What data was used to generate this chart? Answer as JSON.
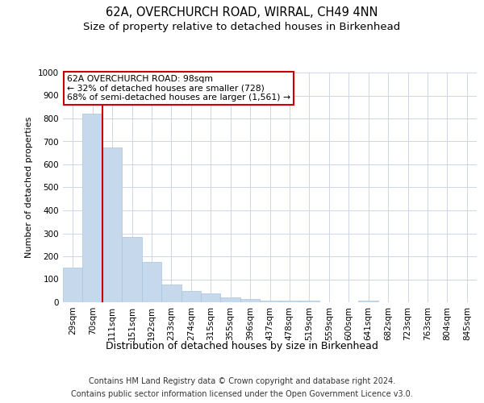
{
  "title": "62A, OVERCHURCH ROAD, WIRRAL, CH49 4NN",
  "subtitle": "Size of property relative to detached houses in Birkenhead",
  "xlabel": "Distribution of detached houses by size in Birkenhead",
  "ylabel": "Number of detached properties",
  "categories": [
    "29sqm",
    "70sqm",
    "111sqm",
    "151sqm",
    "192sqm",
    "233sqm",
    "274sqm",
    "315sqm",
    "355sqm",
    "396sqm",
    "437sqm",
    "478sqm",
    "519sqm",
    "559sqm",
    "600sqm",
    "641sqm",
    "682sqm",
    "723sqm",
    "763sqm",
    "804sqm",
    "845sqm"
  ],
  "values": [
    150,
    820,
    675,
    283,
    175,
    78,
    50,
    40,
    22,
    15,
    8,
    8,
    8,
    0,
    0,
    8,
    0,
    0,
    0,
    0,
    0
  ],
  "bar_color": "#c5d8ec",
  "bar_edge_color": "#a8c4dc",
  "vline_color": "#cc0000",
  "vline_x": 1.5,
  "annotation_text": "62A OVERCHURCH ROAD: 98sqm\n← 32% of detached houses are smaller (728)\n68% of semi-detached houses are larger (1,561) →",
  "annotation_box_color": "#cc0000",
  "ylim": [
    0,
    1000
  ],
  "yticks": [
    0,
    100,
    200,
    300,
    400,
    500,
    600,
    700,
    800,
    900,
    1000
  ],
  "footer_line1": "Contains HM Land Registry data © Crown copyright and database right 2024.",
  "footer_line2": "Contains public sector information licensed under the Open Government Licence v3.0.",
  "bg_color": "#ffffff",
  "grid_color": "#ccd6e8",
  "title_fontsize": 10.5,
  "subtitle_fontsize": 9.5,
  "ylabel_fontsize": 8,
  "xlabel_fontsize": 9,
  "tick_fontsize": 7.5,
  "footer_fontsize": 7,
  "annotation_fontsize": 7.8
}
